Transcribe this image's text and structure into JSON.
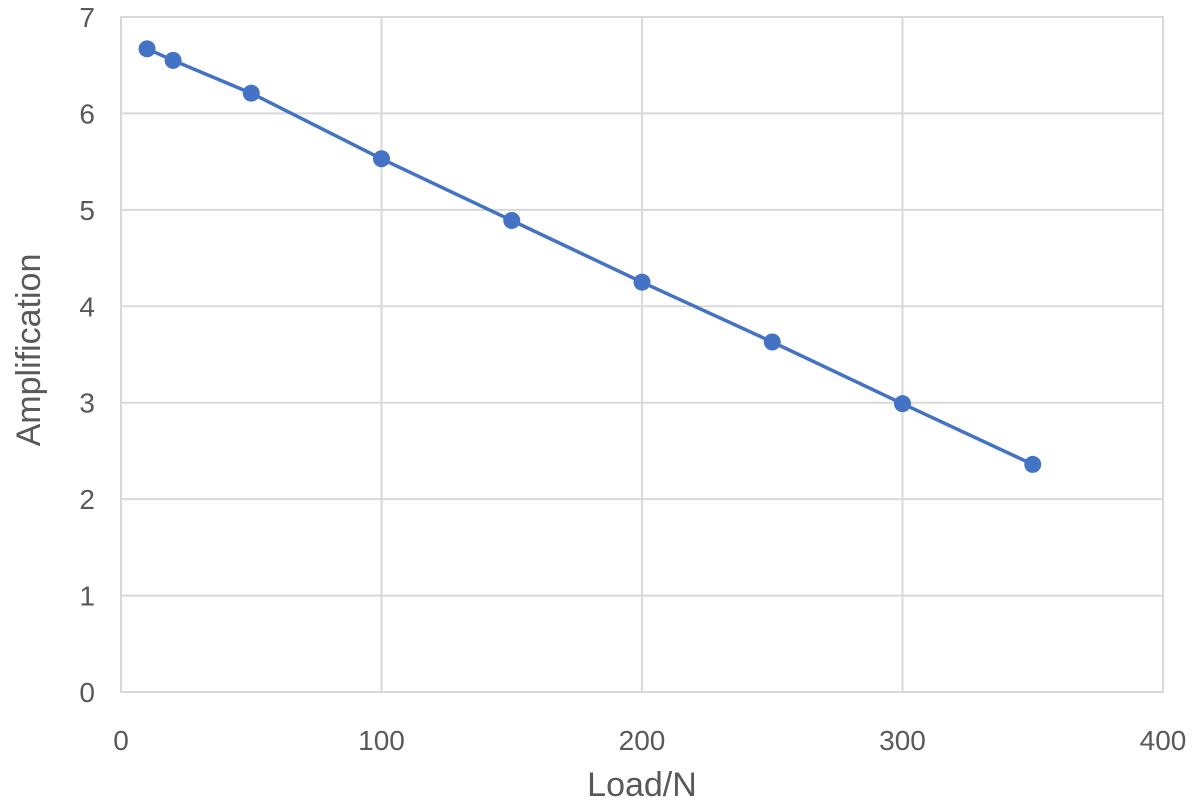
{
  "chart_data": {
    "type": "scatter",
    "title": "",
    "xlabel": "Load/N",
    "ylabel": "Amplification",
    "xlim": [
      0,
      400
    ],
    "ylim": [
      0,
      7
    ],
    "xticks": [
      "0",
      "100",
      "200",
      "300",
      "400"
    ],
    "yticks": [
      "0",
      "1",
      "2",
      "3",
      "4",
      "5",
      "6",
      "7"
    ],
    "grid": true,
    "series": [
      {
        "color": "#4472c4",
        "x": [
          10,
          20,
          50,
          100,
          150,
          200,
          250,
          300,
          350
        ],
        "y": [
          6.67,
          6.55,
          6.21,
          5.53,
          4.89,
          4.25,
          3.63,
          2.99,
          2.36
        ]
      }
    ]
  }
}
